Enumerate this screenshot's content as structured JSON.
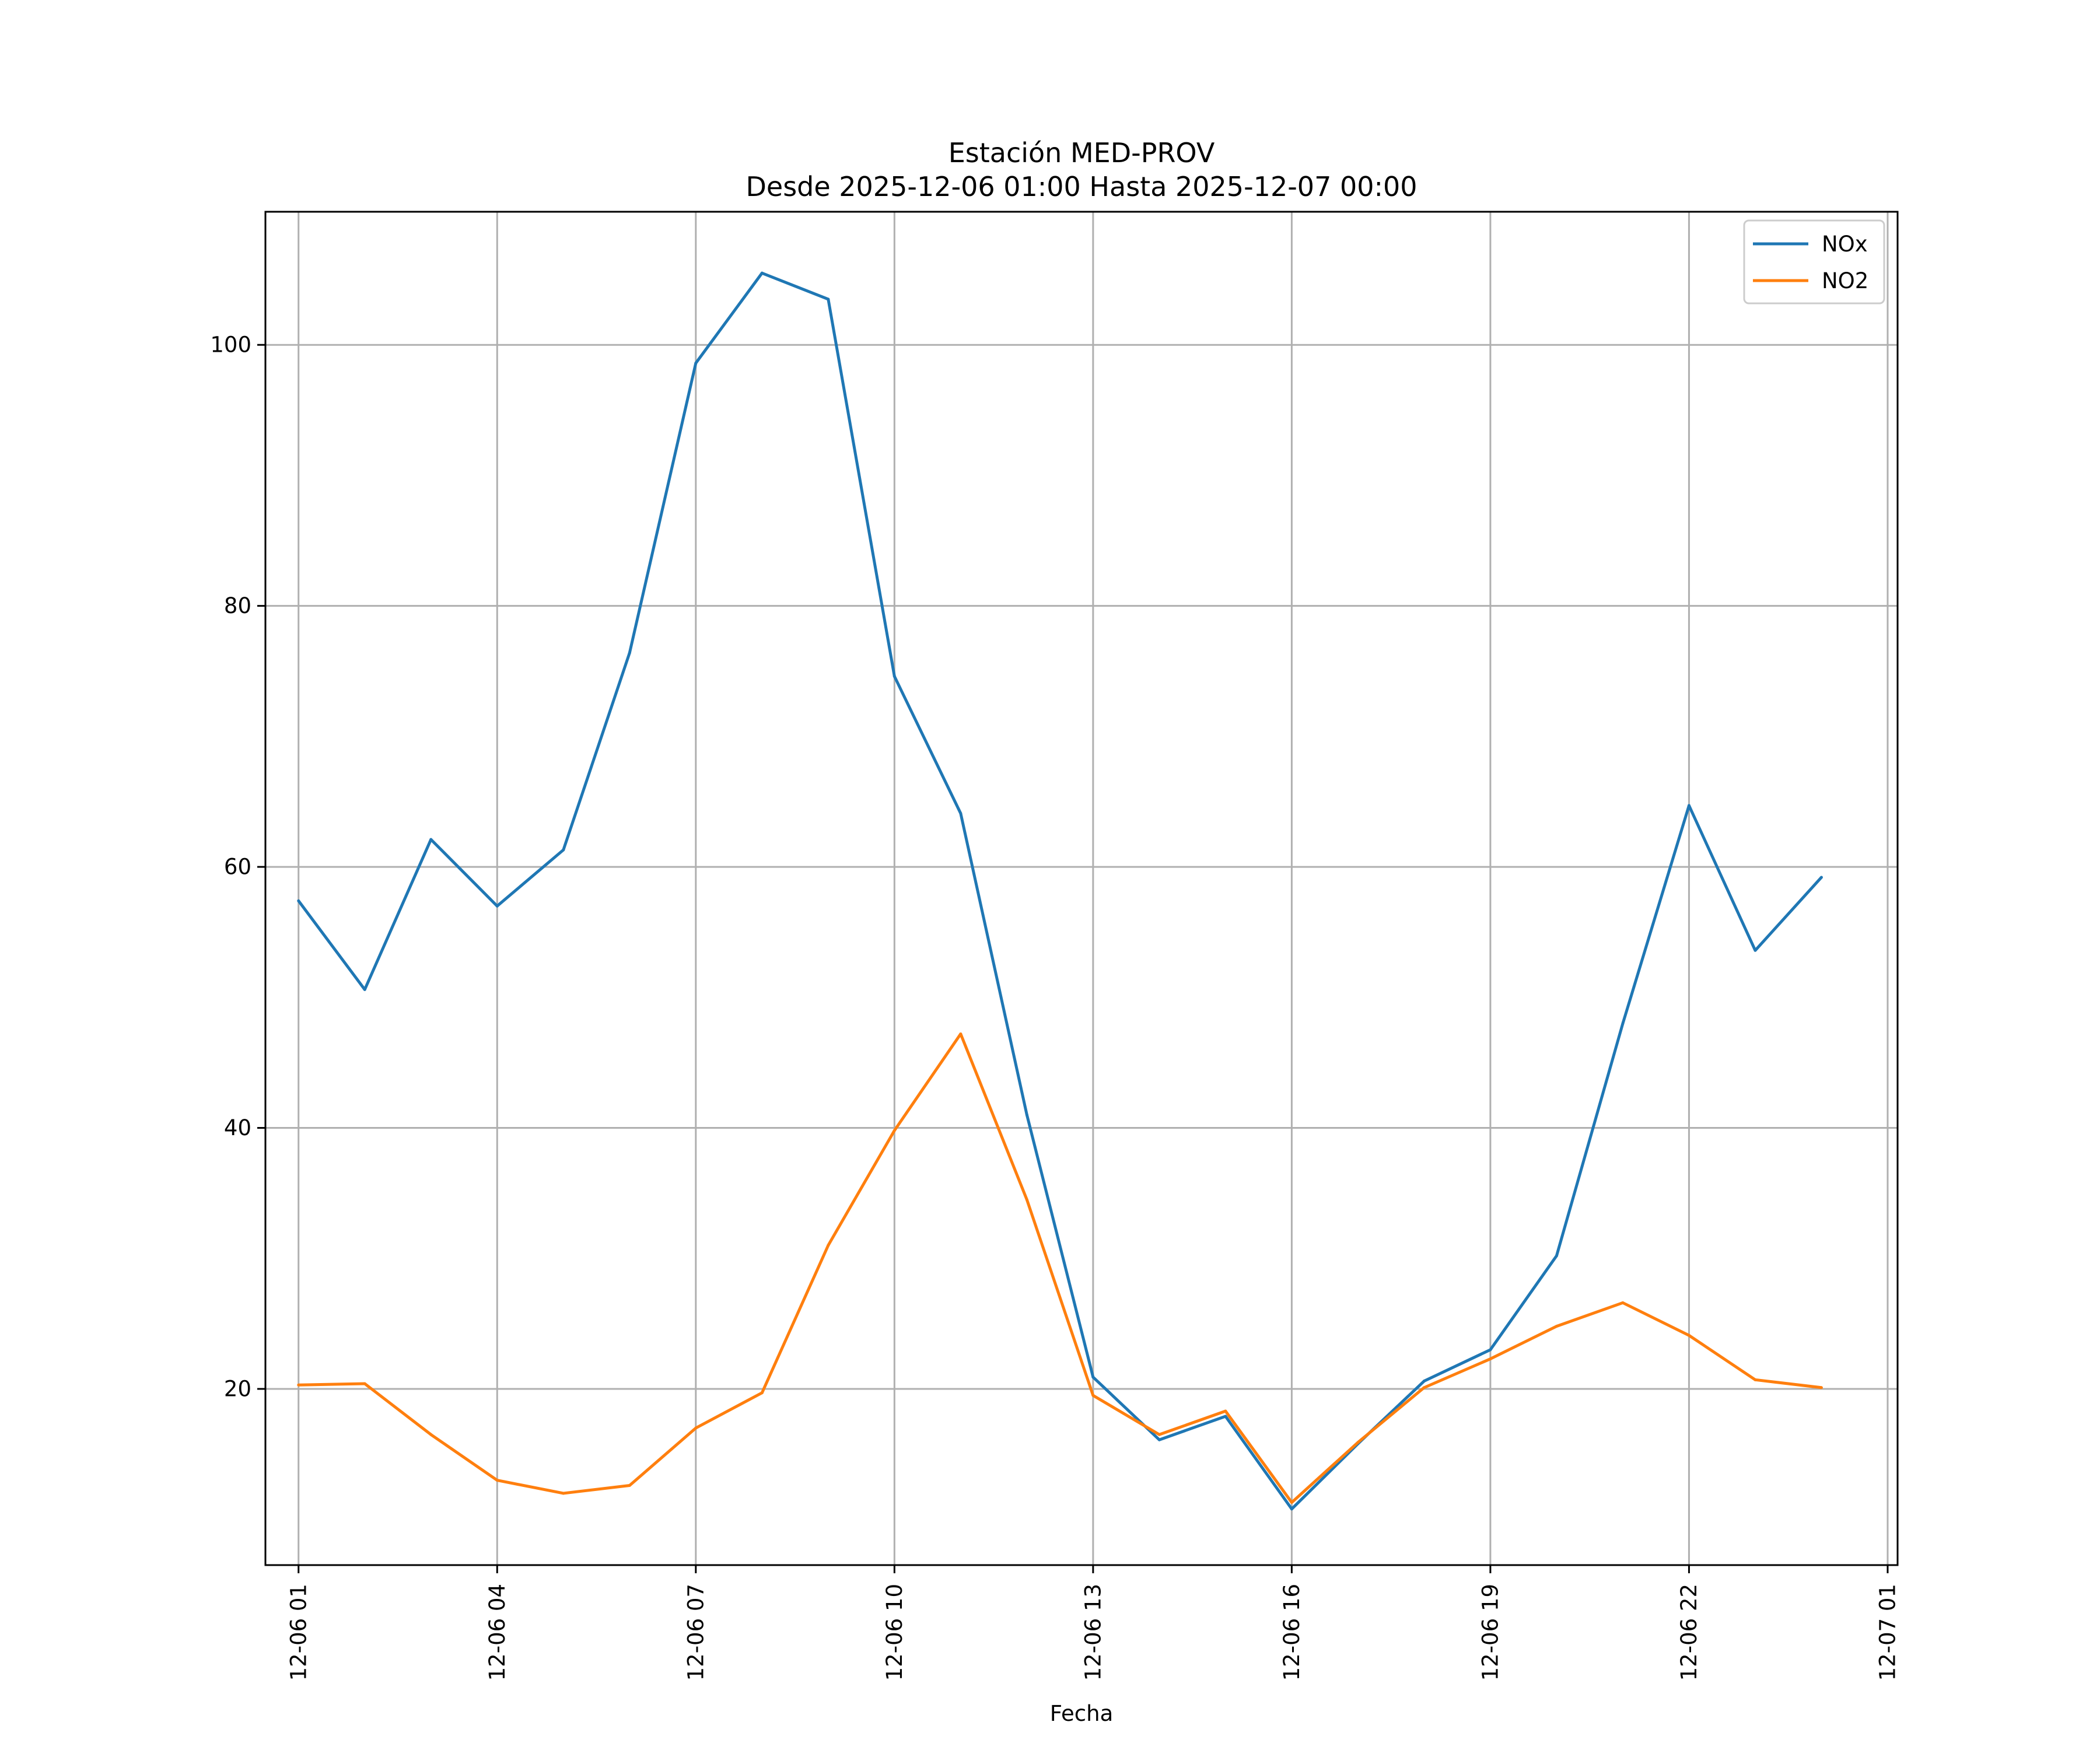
{
  "chart_data": {
    "type": "line",
    "title": "Estación MED-PROV",
    "subtitle": "Desde 2025-12-06 01:00 Hasta 2025-12-07 00:00",
    "xlabel": "Fecha",
    "ylabel": "",
    "x": [
      "12-06 01",
      "12-06 02",
      "12-06 03",
      "12-06 04",
      "12-06 05",
      "12-06 06",
      "12-06 07",
      "12-06 08",
      "12-06 09",
      "12-06 10",
      "12-06 11",
      "12-06 12",
      "12-06 13",
      "12-06 14",
      "12-06 15",
      "12-06 16",
      "12-06 17",
      "12-06 18",
      "12-06 19",
      "12-06 20",
      "12-06 21",
      "12-06 22",
      "12-06 23",
      "12-07 00"
    ],
    "x_ticks": [
      "12-06 01",
      "12-06 04",
      "12-06 07",
      "12-06 10",
      "12-06 13",
      "12-06 16",
      "12-06 19",
      "12-06 22",
      "12-07 01"
    ],
    "xlim_hours": [
      -0.5,
      24.15
    ],
    "y_ticks": [
      20,
      40,
      60,
      80,
      100
    ],
    "ylim": [
      6.5,
      110.2
    ],
    "grid": true,
    "legend_position": "top-right",
    "series": [
      {
        "name": "NOx",
        "color": "#1f77b4",
        "values": [
          57.4,
          50.6,
          62.1,
          57.0,
          61.3,
          76.4,
          98.6,
          105.5,
          103.5,
          74.6,
          64.1,
          41.0,
          20.9,
          16.1,
          17.9,
          10.8,
          15.8,
          20.6,
          23.0,
          30.2,
          48.0,
          64.7,
          53.6,
          59.2
        ]
      },
      {
        "name": "NO2",
        "color": "#ff7f0e",
        "values": [
          20.3,
          20.4,
          16.5,
          13.0,
          12.0,
          12.6,
          17.0,
          19.7,
          31.0,
          39.8,
          47.2,
          34.5,
          19.5,
          16.5,
          18.3,
          11.3,
          15.9,
          20.1,
          22.3,
          24.8,
          26.6,
          24.1,
          20.7,
          20.1
        ]
      }
    ]
  }
}
